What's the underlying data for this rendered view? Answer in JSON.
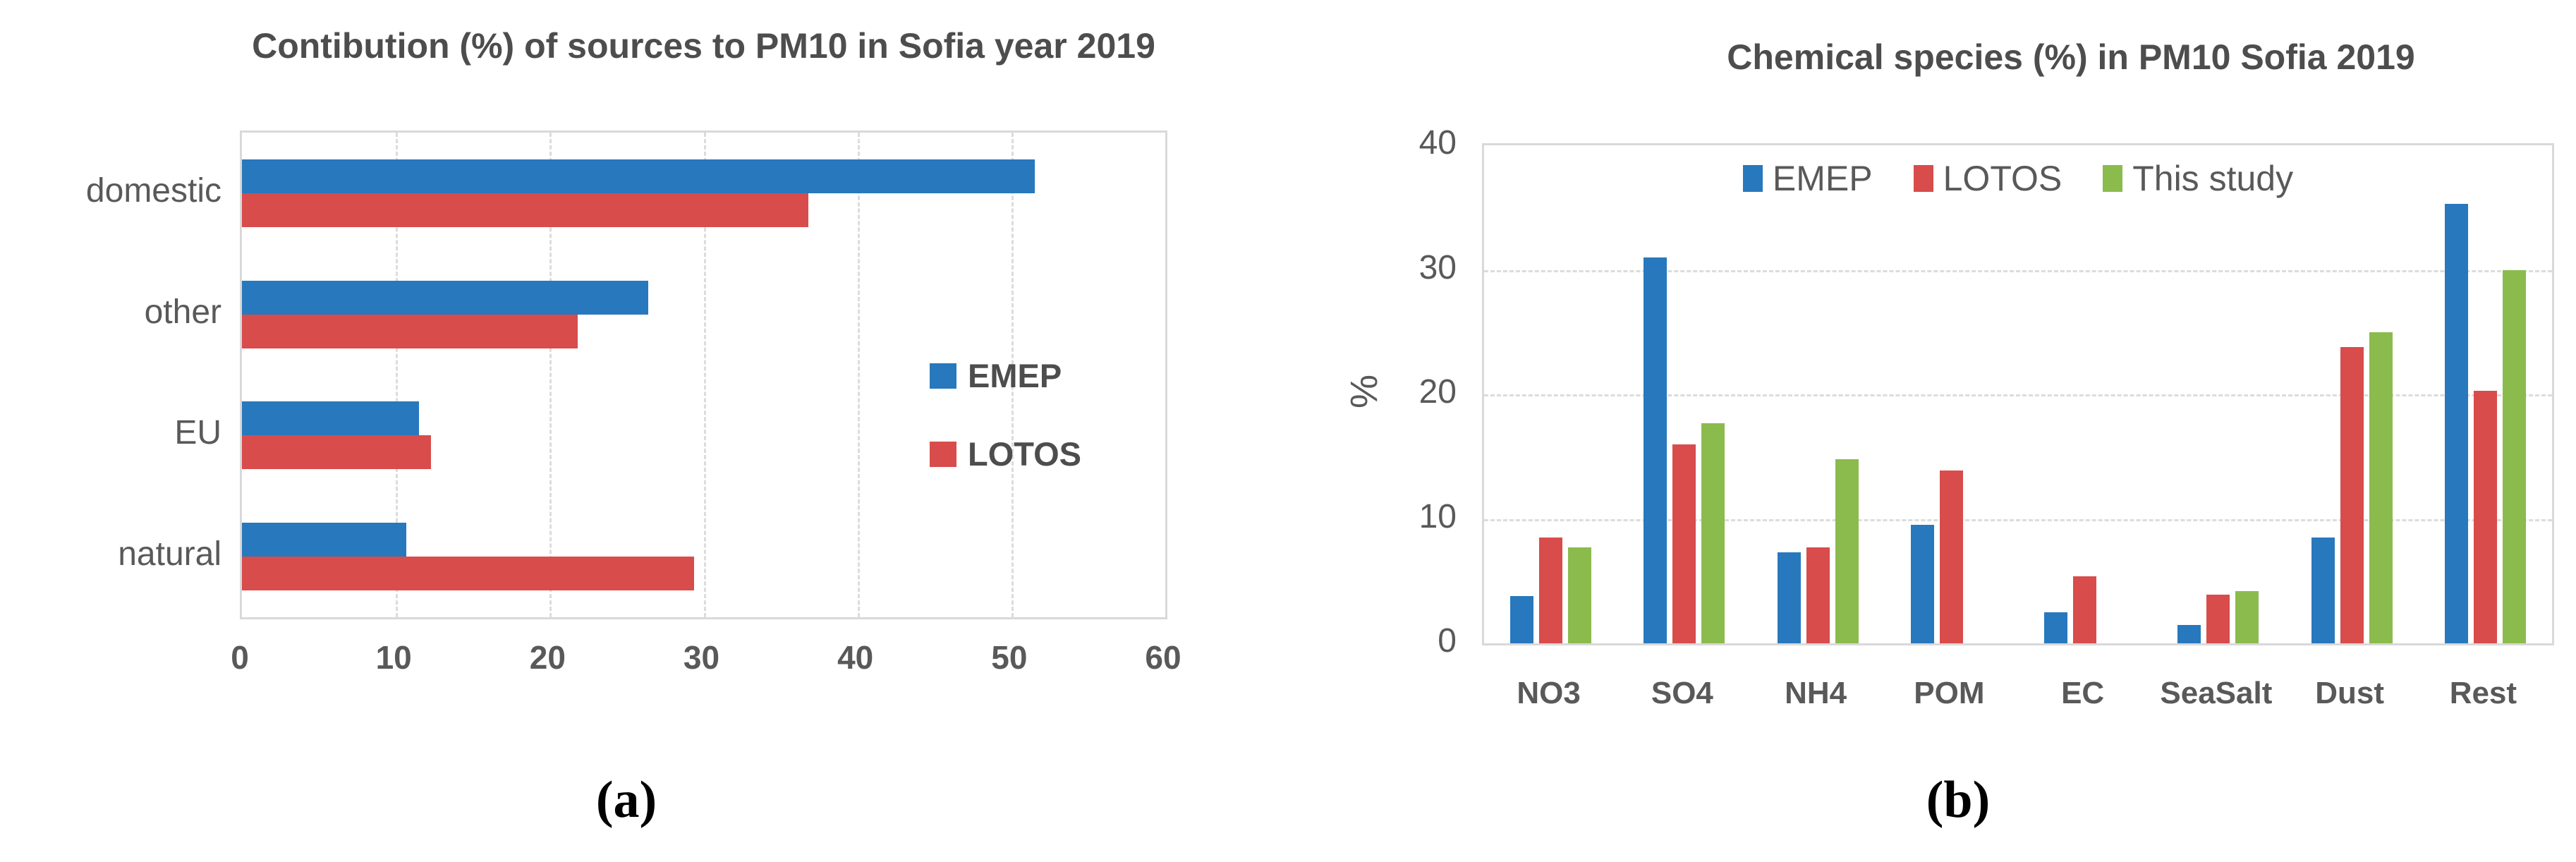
{
  "colors": {
    "emep": "#2878bd",
    "lotos": "#d84c4c",
    "this_study": "#8bbb4d",
    "grid": "#dcdcdc",
    "plot_border": "#d9d9d9",
    "axis_text": "#595959",
    "title_text": "#4d4d4d"
  },
  "captions": {
    "a": "(a)",
    "b": "(b)"
  },
  "chart_data": [
    {
      "type": "bar",
      "orientation": "horizontal",
      "title": "Contibution (%) of sources to PM10 in Sofia year 2019",
      "categories": [
        "domestic",
        "other",
        "EU",
        "natural"
      ],
      "series": [
        {
          "name": "EMEP",
          "color_key": "emep",
          "values": [
            51.5,
            26.4,
            11.5,
            10.7
          ]
        },
        {
          "name": "LOTOS",
          "color_key": "lotos",
          "values": [
            36.8,
            21.8,
            12.3,
            29.4
          ]
        }
      ],
      "xlabel": "",
      "ylabel": "",
      "xlim": [
        0,
        60
      ],
      "xticks": [
        0,
        10,
        20,
        30,
        40,
        50,
        60
      ],
      "grid": "vertical-dashed",
      "legend_position": "inside-right"
    },
    {
      "type": "bar",
      "orientation": "vertical",
      "title": "Chemical species (%) in PM10 Sofia 2019",
      "categories": [
        "NO3",
        "SO4",
        "NH4",
        "POM",
        "EC",
        "SeaSalt",
        "Dust",
        "Rest"
      ],
      "series": [
        {
          "name": "EMEP",
          "color_key": "emep",
          "values": [
            3.8,
            31.0,
            7.3,
            9.5,
            2.5,
            1.5,
            8.5,
            35.3
          ]
        },
        {
          "name": "LOTOS",
          "color_key": "lotos",
          "values": [
            8.5,
            16.0,
            7.7,
            13.9,
            5.4,
            3.9,
            23.8,
            20.3
          ]
        },
        {
          "name": "This study",
          "color_key": "this_study",
          "values": [
            7.7,
            17.7,
            14.8,
            0,
            0,
            4.2,
            25.0,
            30.0
          ]
        }
      ],
      "xlabel": "",
      "ylabel": "%",
      "ylim": [
        0,
        40
      ],
      "yticks": [
        40,
        30,
        20,
        10,
        0
      ],
      "grid": "horizontal-dashed",
      "legend_position": "inside-top"
    }
  ]
}
